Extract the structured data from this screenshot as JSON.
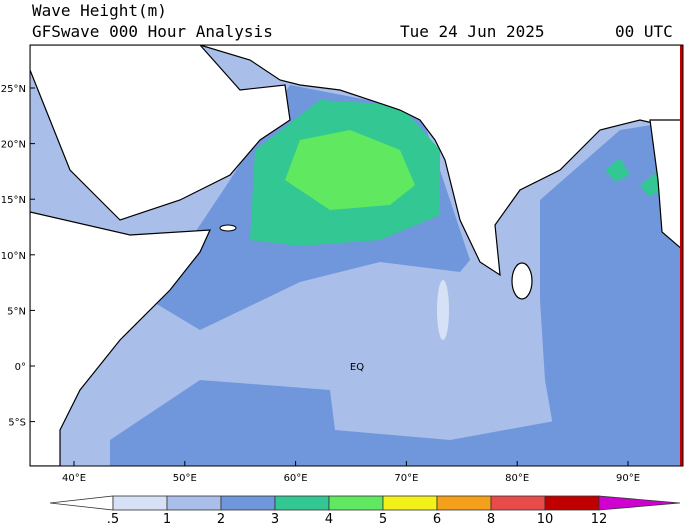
{
  "header": {
    "title": "Wave Height(m)",
    "subtitle": "GFSwave 000 Hour Analysis",
    "date": "Tue 24 Jun 2025",
    "time": "00 UTC"
  },
  "map": {
    "lat_labels": [
      "25°N",
      "20°N",
      "15°N",
      "10°N",
      "5°N",
      "0°",
      "5°S"
    ],
    "lon_labels": [
      "40°E",
      "50°E",
      "60°E",
      "70°E",
      "80°E",
      "90°E"
    ],
    "equator_label": "EQ"
  },
  "colorbar": {
    "labels": [
      ".5",
      "1",
      "2",
      "3",
      "4",
      "5",
      "6",
      "8",
      "10",
      "12"
    ]
  }
}
